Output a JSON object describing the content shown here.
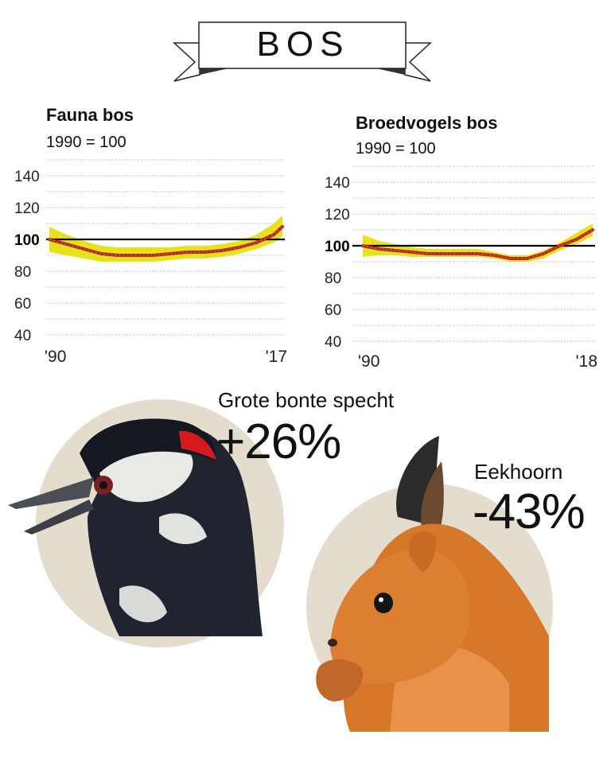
{
  "banner": {
    "title": "BOS"
  },
  "chart_data": [
    {
      "type": "line",
      "title": "Fauna bos",
      "subtitle": "1990 = 100",
      "x_labels": [
        "'90",
        "'17"
      ],
      "x": [
        1990,
        1992,
        1994,
        1996,
        1998,
        2000,
        2002,
        2004,
        2006,
        2008,
        2010,
        2012,
        2014,
        2016,
        2017
      ],
      "series": [
        {
          "values": [
            100,
            97,
            94,
            91,
            90,
            90,
            90,
            91,
            92,
            92,
            93,
            95,
            98,
            103,
            108
          ]
        }
      ],
      "band_upper": [
        108,
        103,
        99,
        96,
        95,
        95,
        95,
        95,
        96,
        96,
        97,
        99,
        103,
        110,
        115
      ],
      "band_lower": [
        92,
        90,
        88,
        86,
        86,
        86,
        86,
        87,
        88,
        88,
        89,
        91,
        94,
        98,
        102
      ],
      "reference_value": 100,
      "reference_label": "100",
      "y_ticks": [
        40,
        60,
        80,
        120,
        140
      ],
      "ylim": [
        30,
        150
      ],
      "grid": true,
      "colors": {
        "line": "#b5252b",
        "band": "#e6e21a",
        "reference": "#000000"
      }
    },
    {
      "type": "line",
      "title": "Broedvogels bos",
      "subtitle": "1990 = 100",
      "x_labels": [
        "'90",
        "'18"
      ],
      "x": [
        1990,
        1992,
        1994,
        1996,
        1998,
        2000,
        2002,
        2004,
        2006,
        2008,
        2010,
        2012,
        2014,
        2016,
        2018
      ],
      "series": [
        {
          "values": [
            100,
            98,
            97,
            96,
            95,
            95,
            95,
            95,
            94,
            92,
            92,
            95,
            100,
            104,
            110
          ]
        }
      ],
      "band_upper": [
        107,
        103,
        101,
        99,
        98,
        98,
        98,
        98,
        96,
        94,
        94,
        97,
        102,
        108,
        114
      ],
      "band_lower": [
        93,
        94,
        94,
        93,
        93,
        93,
        93,
        93,
        92,
        90,
        90,
        92,
        97,
        101,
        106
      ],
      "reference_value": 100,
      "reference_label": "100",
      "y_ticks": [
        40,
        60,
        80,
        120,
        140
      ],
      "ylim": [
        30,
        150
      ],
      "grid": true,
      "colors": {
        "line": "#b5252b",
        "band": "#e6e21a",
        "reference": "#000000"
      }
    }
  ],
  "callouts": [
    {
      "name": "Grote bonte specht",
      "change": "+26%"
    },
    {
      "name": "Eekhoorn",
      "change": "-43%"
    }
  ],
  "colors": {
    "circle": "#e4dccd"
  }
}
